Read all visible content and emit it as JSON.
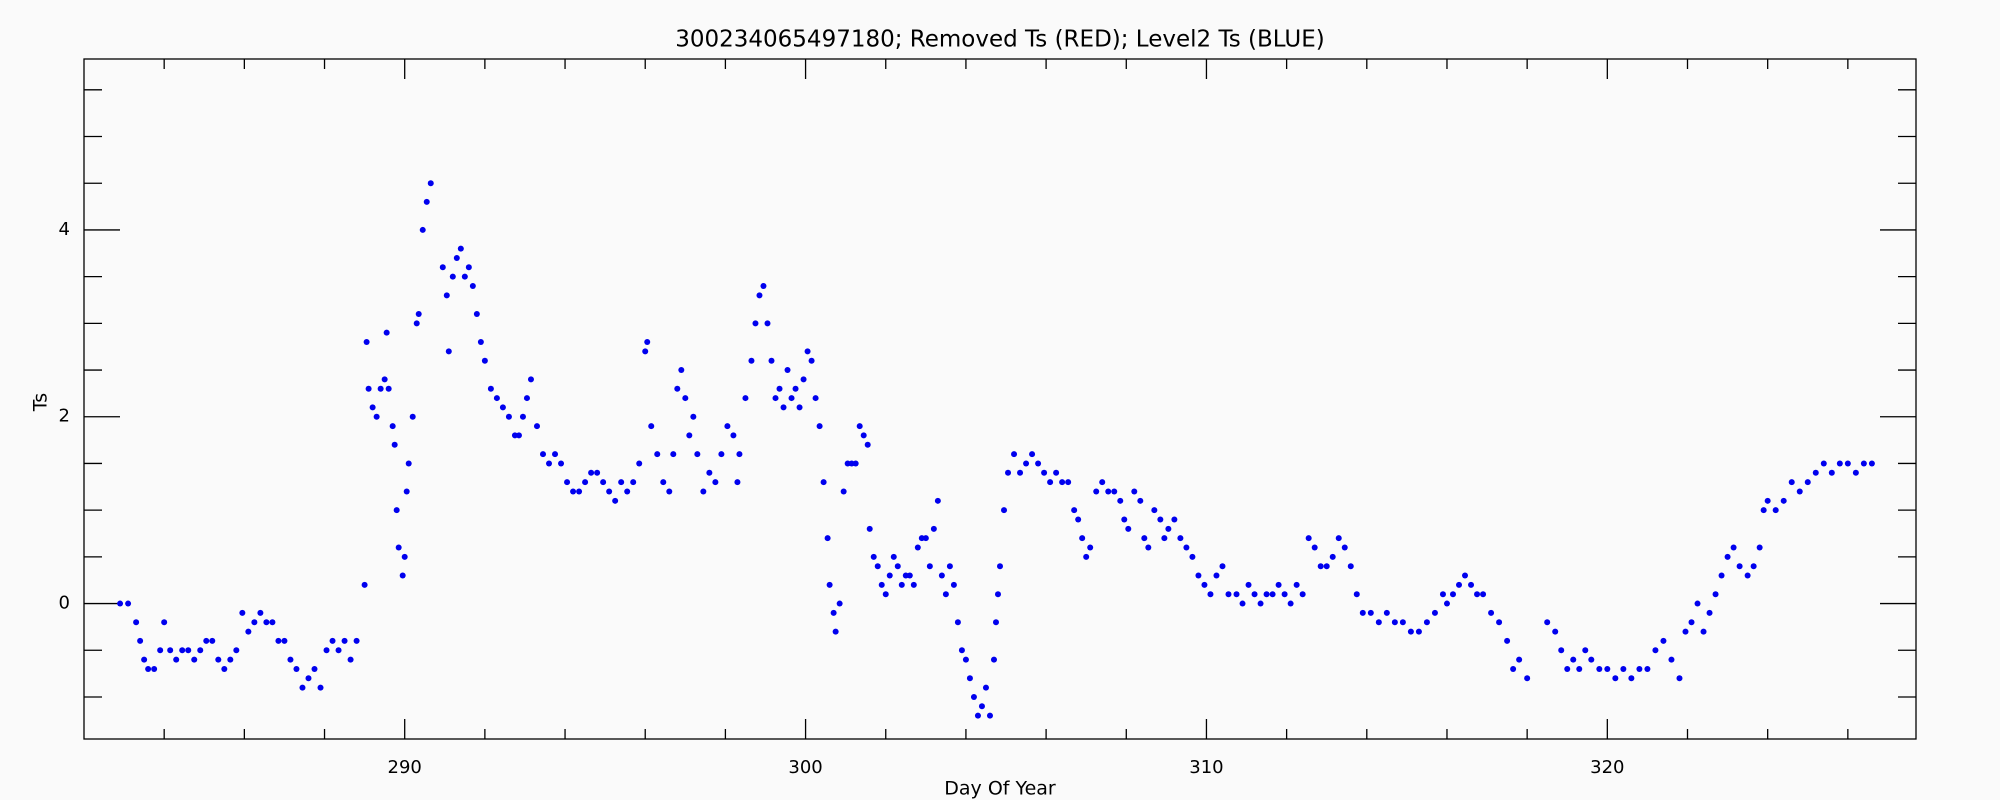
{
  "chart_data": {
    "type": "scatter",
    "title": "300234065497180; Removed Ts (RED); Level2 Ts (BLUE)",
    "x_label": "Day Of Year",
    "y_label": "Ts",
    "color": "#0000ee",
    "xlim": [
      282,
      327.7
    ],
    "ylim": [
      -1.45,
      5.83
    ],
    "xticks": [
      290,
      300,
      310,
      320
    ],
    "xminor_ticks": [
      284,
      286,
      288,
      292,
      294,
      296,
      298,
      302,
      304,
      306,
      308,
      312,
      314,
      316,
      318,
      322,
      324,
      326
    ],
    "yticks": [
      0,
      2,
      4
    ],
    "yminor_ticks": [
      -1,
      -0.5,
      0.5,
      1,
      1.5,
      2.5,
      3,
      3.5,
      4.5,
      5,
      5.5
    ],
    "x": [
      282.9,
      283.1,
      283.3,
      283.4,
      283.5,
      283.6,
      283.75,
      283.9,
      284.0,
      284.15,
      284.3,
      284.45,
      284.6,
      284.75,
      284.9,
      285.05,
      285.2,
      285.35,
      285.5,
      285.65,
      285.8,
      285.95,
      286.1,
      286.25,
      286.4,
      286.55,
      286.7,
      286.85,
      287.0,
      287.15,
      287.3,
      287.45,
      287.6,
      287.75,
      287.9,
      288.05,
      288.2,
      288.35,
      288.5,
      288.65,
      288.8,
      289.0,
      289.05,
      289.1,
      289.2,
      289.3,
      289.4,
      289.5,
      289.55,
      289.6,
      289.7,
      289.75,
      289.8,
      289.85,
      289.95,
      290.0,
      290.05,
      290.1,
      290.2,
      290.3,
      290.35,
      290.45,
      290.55,
      290.65,
      290.95,
      291.05,
      291.1,
      291.2,
      291.3,
      291.4,
      291.5,
      291.6,
      291.7,
      291.8,
      291.9,
      292.0,
      292.15,
      292.3,
      292.45,
      292.6,
      292.75,
      292.85,
      292.95,
      293.05,
      293.15,
      293.3,
      293.45,
      293.6,
      293.75,
      293.9,
      294.05,
      294.2,
      294.35,
      294.5,
      294.65,
      294.8,
      294.95,
      295.1,
      295.25,
      295.4,
      295.55,
      295.7,
      295.85,
      296.0,
      296.05,
      296.15,
      296.3,
      296.45,
      296.6,
      296.7,
      296.8,
      296.9,
      297.0,
      297.1,
      297.2,
      297.3,
      297.45,
      297.6,
      297.75,
      297.9,
      298.05,
      298.2,
      298.3,
      298.35,
      298.5,
      298.65,
      298.75,
      298.85,
      298.95,
      299.05,
      299.15,
      299.25,
      299.35,
      299.45,
      299.55,
      299.65,
      299.75,
      299.85,
      299.95,
      300.05,
      300.15,
      300.25,
      300.35,
      300.45,
      300.55,
      300.6,
      300.7,
      300.75,
      300.85,
      300.95,
      301.05,
      301.15,
      301.25,
      301.35,
      301.45,
      301.55,
      301.6,
      301.7,
      301.8,
      301.9,
      302.0,
      302.1,
      302.2,
      302.3,
      302.4,
      302.5,
      302.6,
      302.7,
      302.8,
      302.9,
      303.0,
      303.1,
      303.2,
      303.3,
      303.4,
      303.5,
      303.6,
      303.7,
      303.8,
      303.9,
      304.0,
      304.1,
      304.2,
      304.3,
      304.4,
      304.5,
      304.6,
      304.7,
      304.75,
      304.8,
      304.85,
      304.95,
      305.05,
      305.2,
      305.35,
      305.5,
      305.65,
      305.8,
      305.95,
      306.1,
      306.25,
      306.4,
      306.55,
      306.7,
      306.8,
      306.9,
      307.0,
      307.1,
      307.25,
      307.4,
      307.55,
      307.7,
      307.85,
      307.95,
      308.05,
      308.2,
      308.35,
      308.45,
      308.55,
      308.7,
      308.85,
      308.95,
      309.05,
      309.2,
      309.35,
      309.5,
      309.65,
      309.8,
      309.95,
      310.1,
      310.25,
      310.4,
      310.55,
      310.75,
      310.9,
      311.05,
      311.2,
      311.35,
      311.5,
      311.65,
      311.8,
      311.95,
      312.1,
      312.25,
      312.4,
      312.55,
      312.7,
      312.85,
      313.0,
      313.15,
      313.3,
      313.45,
      313.6,
      313.75,
      313.9,
      314.1,
      314.3,
      314.5,
      314.7,
      314.9,
      315.1,
      315.3,
      315.5,
      315.7,
      315.9,
      316.0,
      316.15,
      316.3,
      316.45,
      316.6,
      316.75,
      316.9,
      317.1,
      317.3,
      317.5,
      317.65,
      317.8,
      318.0,
      318.5,
      318.7,
      318.85,
      319.0,
      319.15,
      319.3,
      319.45,
      319.6,
      319.8,
      320.0,
      320.2,
      320.4,
      320.6,
      320.8,
      321.0,
      321.2,
      321.4,
      321.6,
      321.8,
      321.95,
      322.1,
      322.25,
      322.4,
      322.55,
      322.7,
      322.85,
      323.0,
      323.15,
      323.3,
      323.5,
      323.65,
      323.8,
      323.9,
      324.0,
      324.2,
      324.4,
      324.6,
      324.8,
      325.0,
      325.2,
      325.4,
      325.6,
      325.8,
      326.0,
      326.2,
      326.4,
      326.6
    ],
    "values": [
      0,
      0,
      -0.2,
      -0.4,
      -0.6,
      -0.7,
      -0.7,
      -0.5,
      -0.2,
      -0.5,
      -0.6,
      -0.5,
      -0.5,
      -0.6,
      -0.5,
      -0.4,
      -0.4,
      -0.6,
      -0.7,
      -0.6,
      -0.5,
      -0.1,
      -0.3,
      -0.2,
      -0.1,
      -0.2,
      -0.2,
      -0.4,
      -0.4,
      -0.6,
      -0.7,
      -0.9,
      -0.8,
      -0.7,
      -0.9,
      -0.5,
      -0.4,
      -0.5,
      -0.4,
      -0.6,
      -0.4,
      0.2,
      2.8,
      2.3,
      2.1,
      2.0,
      2.3,
      2.4,
      2.9,
      2.3,
      1.9,
      1.7,
      1.0,
      0.6,
      0.3,
      0.5,
      1.2,
      1.5,
      2.0,
      3.0,
      3.1,
      4.0,
      4.3,
      4.5,
      3.6,
      3.3,
      2.7,
      3.5,
      3.7,
      3.8,
      3.5,
      3.6,
      3.4,
      3.1,
      2.8,
      2.6,
      2.3,
      2.2,
      2.1,
      2.0,
      1.8,
      1.8,
      2.0,
      2.2,
      2.4,
      1.9,
      1.6,
      1.5,
      1.6,
      1.5,
      1.3,
      1.2,
      1.2,
      1.3,
      1.4,
      1.4,
      1.3,
      1.2,
      1.1,
      1.3,
      1.2,
      1.3,
      1.5,
      2.7,
      2.8,
      1.9,
      1.6,
      1.3,
      1.2,
      1.6,
      2.3,
      2.5,
      2.2,
      1.8,
      2.0,
      1.6,
      1.2,
      1.4,
      1.3,
      1.6,
      1.9,
      1.8,
      1.3,
      1.6,
      2.2,
      2.6,
      3.0,
      3.3,
      3.4,
      3.0,
      2.6,
      2.2,
      2.3,
      2.1,
      2.5,
      2.2,
      2.3,
      2.1,
      2.4,
      2.7,
      2.6,
      2.2,
      1.9,
      1.3,
      0.7,
      0.2,
      -0.1,
      -0.3,
      0.0,
      1.2,
      1.5,
      1.5,
      1.5,
      1.9,
      1.8,
      1.7,
      0.8,
      0.5,
      0.4,
      0.2,
      0.1,
      0.3,
      0.5,
      0.4,
      0.2,
      0.3,
      0.3,
      0.2,
      0.6,
      0.7,
      0.7,
      0.4,
      0.8,
      1.1,
      0.3,
      0.1,
      0.4,
      0.2,
      -0.2,
      -0.5,
      -0.6,
      -0.8,
      -1.0,
      -1.2,
      -1.1,
      -0.9,
      -1.2,
      -0.6,
      -0.2,
      0.1,
      0.4,
      1.0,
      1.4,
      1.6,
      1.4,
      1.5,
      1.6,
      1.5,
      1.4,
      1.3,
      1.4,
      1.3,
      1.3,
      1.0,
      0.9,
      0.7,
      0.5,
      0.6,
      1.2,
      1.3,
      1.2,
      1.2,
      1.1,
      0.9,
      0.8,
      1.2,
      1.1,
      0.7,
      0.6,
      1.0,
      0.9,
      0.7,
      0.8,
      0.9,
      0.7,
      0.6,
      0.5,
      0.3,
      0.2,
      0.1,
      0.3,
      0.4,
      0.1,
      0.1,
      0.0,
      0.2,
      0.1,
      0.0,
      0.1,
      0.1,
      0.2,
      0.1,
      0.0,
      0.2,
      0.1,
      0.7,
      0.6,
      0.4,
      0.4,
      0.5,
      0.7,
      0.6,
      0.4,
      0.1,
      -0.1,
      -0.1,
      -0.2,
      -0.1,
      -0.2,
      -0.2,
      -0.3,
      -0.3,
      -0.2,
      -0.1,
      0.1,
      0.0,
      0.1,
      0.2,
      0.3,
      0.2,
      0.1,
      0.1,
      -0.1,
      -0.2,
      -0.4,
      -0.7,
      -0.6,
      -0.8,
      -0.2,
      -0.3,
      -0.5,
      -0.7,
      -0.6,
      -0.7,
      -0.5,
      -0.6,
      -0.7,
      -0.7,
      -0.8,
      -0.7,
      -0.8,
      -0.7,
      -0.7,
      -0.5,
      -0.4,
      -0.6,
      -0.8,
      -0.3,
      -0.2,
      0.0,
      -0.3,
      -0.1,
      0.1,
      0.3,
      0.5,
      0.6,
      0.4,
      0.3,
      0.4,
      0.6,
      1.0,
      1.1,
      1.0,
      1.1,
      1.3,
      1.2,
      1.3,
      1.4,
      1.5,
      1.4,
      1.5,
      1.5,
      1.4,
      1.5,
      1.5
    ]
  }
}
